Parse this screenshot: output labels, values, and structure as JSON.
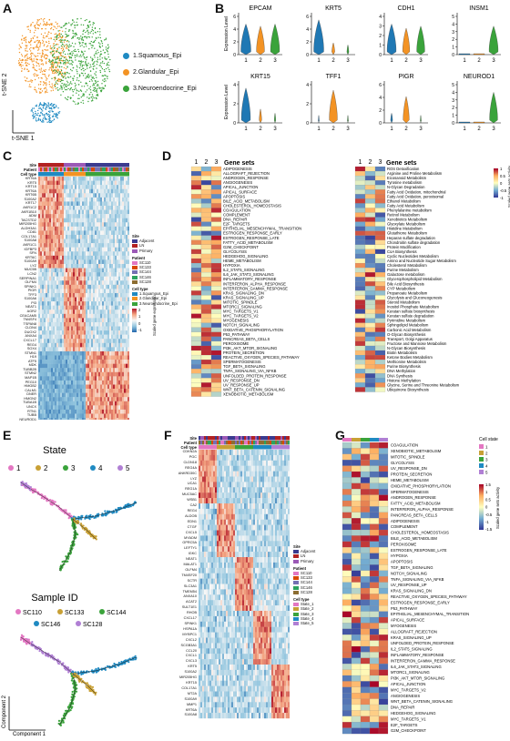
{
  "panel_labels": {
    "a": "A",
    "b": "B",
    "c": "C",
    "d": "D",
    "e": "E",
    "f": "F",
    "g": "G"
  },
  "panel_a": {
    "x_axis": "t-SNE 1",
    "y_axis": "t-SNE 2",
    "clusters": [
      {
        "label": "1.Squamous_Epi",
        "color": "#1f8ac2"
      },
      {
        "label": "2.Glandular_Epi",
        "color": "#f39324"
      },
      {
        "label": "3.Neuroendocrine_Epi",
        "color": "#3aa33b"
      }
    ]
  },
  "panel_b": {
    "ylabel": "Expression Level",
    "categories": [
      "1",
      "2",
      "3"
    ],
    "colors": [
      "#1f78b4",
      "#f39324",
      "#3aa33b"
    ],
    "genes": [
      {
        "name": "EPCAM",
        "yticks": [
          "0",
          "2",
          "4",
          "6"
        ],
        "widths": [
          1.0,
          0.8,
          0.9
        ],
        "shapes": [
          0.6,
          0.55,
          0.6
        ]
      },
      {
        "name": "KRT5",
        "yticks": [
          "0",
          "2",
          "4",
          "6"
        ],
        "widths": [
          1.0,
          0.3,
          0.2
        ],
        "shapes": [
          0.7,
          0.15,
          0.1
        ]
      },
      {
        "name": "CDH1",
        "yticks": [
          "0",
          "1",
          "2",
          "3",
          "4"
        ],
        "widths": [
          0.9,
          0.7,
          0.8
        ],
        "shapes": [
          0.6,
          0.5,
          0.55
        ]
      },
      {
        "name": "INSM1",
        "yticks": [
          "0",
          "1",
          "2",
          "3",
          "4",
          "5"
        ],
        "widths": [
          0.05,
          0.05,
          0.9
        ],
        "shapes": [
          0.02,
          0.02,
          0.55
        ]
      },
      {
        "name": "KRT15",
        "yticks": [
          "0",
          "2",
          "4"
        ],
        "widths": [
          0.9,
          0.25,
          0.15
        ],
        "shapes": [
          0.7,
          0.2,
          0.1
        ]
      },
      {
        "name": "TFF1",
        "yticks": [
          "0",
          "2",
          "4"
        ],
        "widths": [
          0.1,
          0.8,
          0.1
        ],
        "shapes": [
          0.05,
          0.65,
          0.05
        ]
      },
      {
        "name": "PIGR",
        "yticks": [
          "0",
          "2",
          "4",
          "6"
        ],
        "widths": [
          0.2,
          0.6,
          0.1
        ],
        "shapes": [
          0.1,
          0.5,
          0.05
        ]
      },
      {
        "name": "NEUROD1",
        "yticks": [
          "0",
          "1",
          "2",
          "3",
          "4",
          "5"
        ],
        "widths": [
          0.05,
          0.05,
          0.8
        ],
        "shapes": [
          0.02,
          0.02,
          0.6
        ]
      }
    ]
  },
  "panel_c": {
    "track_labels": [
      "Site",
      "Patient",
      "Cell type"
    ],
    "genes": [
      "KRT6A",
      "KRT5",
      "KRT15",
      "KRT6A",
      "KRT6B",
      "S100A2",
      "KRT17",
      "AKR1C2",
      "AKR1B10",
      "ADM",
      "TACSTD2",
      "MIR205HG",
      "ALDH3A1",
      "CD81",
      "COL17A1",
      "S100A8",
      "AKR1C1",
      "IGFBP3",
      "SFN",
      "KRT6C",
      "S100A9",
      "LYZ",
      "MUC5B",
      "LCN2",
      "SERPINA1",
      "OLFM4",
      "SPINK1",
      "PIGR",
      "TFF3",
      "S100A6",
      "PI3",
      "NEAT1",
      "AGR2",
      "CEACAM5",
      "TM4SF4",
      "TSPAN8",
      "CLDN4",
      "DUOX2",
      "ANXA4",
      "CXCL17",
      "REG4",
      "SOX4",
      "STMN1",
      "H19",
      "ATF5",
      "MDK",
      "TUBB2B",
      "STMN2",
      "MAP1B",
      "PEG10",
      "HMGB2",
      "CALM1",
      "DNER",
      "HMGN2",
      "TUBA1B",
      "UNCX",
      "RTN1",
      "TUBB",
      "NEUROD1"
    ],
    "legend_site_title": "Site",
    "legend_site": [
      [
        "Adjacent",
        "#3b3b8f"
      ],
      [
        "LN",
        "#b22222"
      ],
      [
        "Primary",
        "#9b59b6"
      ]
    ],
    "legend_patient_title": "Patient",
    "legend_patient": [
      [
        "SC110",
        "#e377c2"
      ],
      [
        "SC133",
        "#d94801"
      ],
      [
        "SC144",
        "#7570b3"
      ],
      [
        "SC146",
        "#2ca25f"
      ],
      [
        "SC128",
        "#8c6d31"
      ]
    ],
    "legend_cell_title": "Cell type",
    "legend_cell": [
      [
        "1.Squamous_Epi",
        "#1f8ac2"
      ],
      [
        "2.Glandular_Epi",
        "#f39324"
      ],
      [
        "3.Neuroendocrine_Epi",
        "#3aa33b"
      ]
    ],
    "scale_title": "Scaled gene expression",
    "scale_ticks": [
      "2",
      "1",
      "0",
      "-1"
    ]
  },
  "panel_d": {
    "columns": [
      "1",
      "2",
      "3"
    ],
    "title": "Gene sets",
    "left_sets": [
      "ADIPOGENESIS",
      "ALLOGRAFT_REJECTION",
      "ANDROGEN_RESPONSE",
      "ANGIOGENESIS",
      "APICAL_JUNCTION",
      "APICAL_SURFACE",
      "APOPTOSIS",
      "BILE_ACID_METABOLISM",
      "CHOLESTEROL_HOMEOSTASIS",
      "COAGULATION",
      "COMPLEMENT",
      "DNA_REPAIR",
      "E2F_TARGETS",
      "EPITHELIAL_MESENCHYMAL_TRANSITION",
      "ESTROGEN_RESPONSE_EARLY",
      "ESTROGEN_RESPONSE_LATE",
      "FATTY_ACID_METABOLISM",
      "G2M_CHECKPOINT",
      "GLYCOLYSIS",
      "HEDGEHOG_SIGNALING",
      "HEME_METABOLISM",
      "HYPOXIA",
      "IL2_STAT5_SIGNALING",
      "IL6_JAK_STAT3_SIGNALING",
      "INFLAMMATORY_RESPONSE",
      "INTERFERON_ALPHA_RESPONSE",
      "INTERFERON_GAMMA_RESPONSE",
      "KRAS_SIGNALING_DN",
      "KRAS_SIGNALING_UP",
      "MITOTIC_SPINDLE",
      "MTORC1_SIGNALING",
      "MYC_TARGETS_V1",
      "MYC_TARGETS_V2",
      "MYOGENESIS",
      "NOTCH_SIGNALING",
      "OXIDATIVE_PHOSPHORYLATION",
      "P53_PATHWAY",
      "PANCREAS_BETA_CELLS",
      "PEROXISOME",
      "PI3K_AKT_MTOR_SIGNALING",
      "PROTEIN_SECRETION",
      "REACTIVE_OXYGEN_SPECIES_PATHWAY",
      "SPERMATOGENESIS",
      "TGF_BETA_SIGNALING",
      "TNFA_SIGNALING_VIA_NFKB",
      "UNFOLDED_PROTEIN_RESPONSE",
      "UV_RESPONSE_DN",
      "UV_RESPONSE_UP",
      "WNT_BETA_CATENIN_SIGNALING",
      "XENOBIOTIC_METABOLISM"
    ],
    "right_sets": [
      "ROS Detoxification",
      "Arginine and Proline Metabolism",
      "Eicosanoid Metabolism",
      "Tyrosine metabolism",
      "N-Glycan Degradation",
      "Fatty Acid Oxidation, mitochondrial",
      "Fatty Acid Oxidation, peroxisomal",
      "Ethanol Metabolism",
      "Fatty Acid Metabolism",
      "Phenylalanine metabolism",
      "Retinol Metabolism",
      "Xenobiotics Metabolism",
      "Glyoxylate Metabolism",
      "Histidine Metabolism",
      "Glutathione Metabolism",
      "Heparan sulfate degradation",
      "Chondroitin sulfate degradation",
      "Protein Modification",
      "CoA Biosynthesis",
      "Cyclic Nucleotides Metabolism",
      "Amino and Nucleotide Sugar Metabolism",
      "Cholesterol Metabolism",
      "Purine Metabolism",
      "Galactose metabolism",
      "Glycerophospholipid Metabolism",
      "Bile Acid Biosynthesis",
      "CYP Metabolism",
      "Propanoate Metabolism",
      "Glycolysis and Gluconeogenesis",
      "Steroid Metabolism",
      "Inositol Phosphate Metabolism",
      "Keratan sulfate biosynthesis",
      "Keratan sulfate degradation",
      "Pyrimidine Metabolism",
      "Sphingolipid Metabolism",
      "Carbonic Acid Metabolism",
      "O-Glycan Biosynthesis",
      "Transport, Golgi Apparatus",
      "Fructose and Mannose Metabolism",
      "N-Glycan Biosynthesis",
      "Biotin Metabolism",
      "Ketone Bodies Metabolism",
      "Methionine Metabolism",
      "Purine Biosynthesis",
      "DNA Methylation",
      "DNA Synthesis",
      "Histone Methylation",
      "Glycine, Serine and Threonine Metabolism",
      "Ubiquinone Biosynthesis"
    ],
    "scale_title": "Scaled gene sets activity",
    "scale_ticks": [
      "1",
      "0.5",
      "0",
      "-0.5",
      "-1"
    ]
  },
  "panel_e": {
    "state_title": "State",
    "states": [
      [
        "1",
        "#e377c2"
      ],
      [
        "2",
        "#c8a035"
      ],
      [
        "3",
        "#3aa33b"
      ],
      [
        "4",
        "#1f8ac2"
      ],
      [
        "5",
        "#b07fd4"
      ]
    ],
    "sample_title": "Sample ID",
    "samples": [
      [
        "SC110",
        "#e377c2"
      ],
      [
        "SC133",
        "#c8a035"
      ],
      [
        "SC144",
        "#3aa33b"
      ],
      [
        "SC146",
        "#1f8ac2"
      ],
      [
        "SC128",
        "#b07fd4"
      ]
    ],
    "x_axis": "Component 1",
    "y_axis": "Component 2"
  },
  "panel_f": {
    "track_labels": [
      "Site",
      "Patient",
      "Cell type"
    ],
    "genes": [
      "CDKN2A",
      "PGC",
      "CLDN18",
      "REG4A",
      "ANKRD30C",
      "LYZ",
      "UCA1",
      "REG1A",
      "MUC5AC",
      "WSB1",
      "CA2",
      "REG4",
      "ALDOB",
      "EDN1",
      "CTGF",
      "CXCL5",
      "MYADM",
      "GPRC5A",
      "LEFTY1",
      "IGKC",
      "NEAT1",
      "MALAT1",
      "OLFM4",
      "TM4SF20",
      "SCTR",
      "SLC3A1",
      "TMEM54",
      "ANXA10",
      "ACAT2",
      "SULT1E1",
      "RHOB",
      "CXCL17",
      "SPINK1",
      "HSPA1A",
      "MYBPC1",
      "CXCL2",
      "SCGB3A1",
      "CCL20",
      "CXCL1",
      "CXCL3",
      "KRT5",
      "S100A2",
      "MIR205HG",
      "KRT15",
      "COL17A1",
      "MT2A",
      "S100A9",
      "MMP1",
      "KRT6A",
      "S100A8"
    ],
    "legend_site_title": "Site",
    "legend_site": [
      [
        "Adjacent",
        "#3b3b8f"
      ],
      [
        "LN",
        "#b22222"
      ],
      [
        "Primary",
        "#9b59b6"
      ]
    ],
    "legend_patient_title": "Patient",
    "legend_patient": [
      [
        "SC110",
        "#e377c2"
      ],
      [
        "SC133",
        "#d94801"
      ],
      [
        "SC144",
        "#7570b3"
      ],
      [
        "SC146",
        "#2ca25f"
      ],
      [
        "SC128",
        "#8c6d31"
      ]
    ],
    "legend_cell_title": "Cell type",
    "legend_cell": [
      [
        "State_1",
        "#e377c2"
      ],
      [
        "State_2",
        "#c8a035"
      ],
      [
        "State_3",
        "#3aa33b"
      ],
      [
        "State_4",
        "#1f8ac2"
      ],
      [
        "State_5",
        "#b07fd4"
      ]
    ]
  },
  "panel_g": {
    "sets": [
      "COAGULATION",
      "XENOBIOTIC_METABOLISM",
      "MITOTIC_SPINDLE",
      "GLYCOLYSIS",
      "UV_RESPONSE_DN",
      "PROTEIN_SECRETION",
      "HEME_METABOLISM",
      "OXIDATIVE_PHOSPHORYLATION",
      "SPERMATOGENESIS",
      "ANDROGEN_RESPONSE",
      "FATTY_ACID_METABOLISM",
      "INTERFERON_ALPHA_RESPONSE",
      "PANCREAS_BETA_CELLS",
      "ADIPOGENESIS",
      "COMPLEMENT",
      "CHOLESTEROL_HOMEOSTASIS",
      "BILE_ACID_METABOLISM",
      "PEROXISOME",
      "ESTROGEN_RESPONSE_LATE",
      "HYPOXIA",
      "APOPTOSIS",
      "TGF_BETA_SIGNALING",
      "NOTCH_SIGNALING",
      "TNFA_SIGNALING_VIA_NFKB",
      "UV_RESPONSE_UP",
      "KRAS_SIGNALING_DN",
      "REACTIVE_OXYGEN_SPECIES_PATHWAY",
      "ESTROGEN_RESPONSE_EARLY",
      "P53_PATHWAY",
      "EPITHELIAL_MESENCHYMAL_TRANSITION",
      "APICAL_SURFACE",
      "MYOGENESIS",
      "ALLOGRAFT_REJECTION",
      "KRAS_SIGNALING_UP",
      "UNFOLDED_PROTEIN_RESPONSE",
      "IL2_STAT5_SIGNALING",
      "INFLAMMATORY_RESPONSE",
      "INTERFERON_GAMMA_RESPONSE",
      "IL6_JAK_STAT3_SIGNALING",
      "MTORC1_SIGNALING",
      "PI3K_AKT_MTOR_SIGNALING",
      "APICAL_JUNCTION",
      "MYC_TARGETS_V2",
      "ANGIOGENESIS",
      "WNT_BETA_CATENIN_SIGNALING",
      "DNA_REPAIR",
      "HEDGEHOG_SIGNALING",
      "MYC_TARGETS_V1",
      "E2F_TARGETS",
      "G2M_CHECKPOINT"
    ],
    "legend_title": "Cell state",
    "states": [
      [
        "1",
        "#e377c2"
      ],
      [
        "2",
        "#c8a035"
      ],
      [
        "3",
        "#3aa33b"
      ],
      [
        "4",
        "#1f8ac2"
      ],
      [
        "5",
        "#b07fd4"
      ]
    ],
    "scale_title": "Scaled gene sets activity",
    "scale_ticks": [
      "1.5",
      "1",
      "0.5",
      "0",
      "-0.5",
      "-1",
      "-1.5"
    ]
  }
}
